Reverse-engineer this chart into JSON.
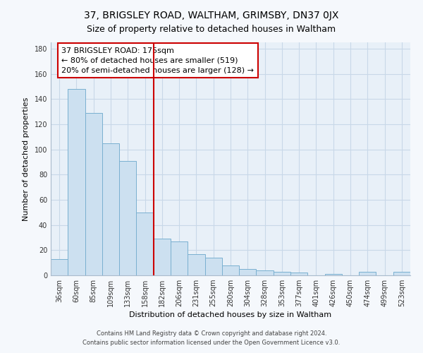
{
  "title": "37, BRIGSLEY ROAD, WALTHAM, GRIMSBY, DN37 0JX",
  "subtitle": "Size of property relative to detached houses in Waltham",
  "xlabel": "Distribution of detached houses by size in Waltham",
  "ylabel": "Number of detached properties",
  "categories": [
    "36sqm",
    "60sqm",
    "85sqm",
    "109sqm",
    "133sqm",
    "158sqm",
    "182sqm",
    "206sqm",
    "231sqm",
    "255sqm",
    "280sqm",
    "304sqm",
    "328sqm",
    "353sqm",
    "377sqm",
    "401sqm",
    "426sqm",
    "450sqm",
    "474sqm",
    "499sqm",
    "523sqm"
  ],
  "values": [
    13,
    148,
    129,
    105,
    91,
    50,
    29,
    27,
    17,
    14,
    8,
    5,
    4,
    3,
    2,
    0,
    1,
    0,
    3,
    0,
    3
  ],
  "bar_color": "#cce0f0",
  "bar_edge_color": "#7ab0d0",
  "vline_color": "#cc0000",
  "annotation_title": "37 BRIGSLEY ROAD: 175sqm",
  "annotation_line1": "← 80% of detached houses are smaller (519)",
  "annotation_line2": "20% of semi-detached houses are larger (128) →",
  "annotation_box_facecolor": "#ffffff",
  "annotation_box_edgecolor": "#cc0000",
  "ylim": [
    0,
    185
  ],
  "yticks": [
    0,
    20,
    40,
    60,
    80,
    100,
    120,
    140,
    160,
    180
  ],
  "footer1": "Contains HM Land Registry data © Crown copyright and database right 2024.",
  "footer2": "Contains public sector information licensed under the Open Government Licence v3.0.",
  "fig_facecolor": "#f5f8fc",
  "plot_facecolor": "#e8f0f8",
  "grid_color": "#c8d8e8",
  "spine_color": "#aabbcc",
  "title_fontsize": 10,
  "subtitle_fontsize": 9,
  "axis_label_fontsize": 8,
  "tick_fontsize": 7,
  "annotation_fontsize": 8,
  "footer_fontsize": 6
}
